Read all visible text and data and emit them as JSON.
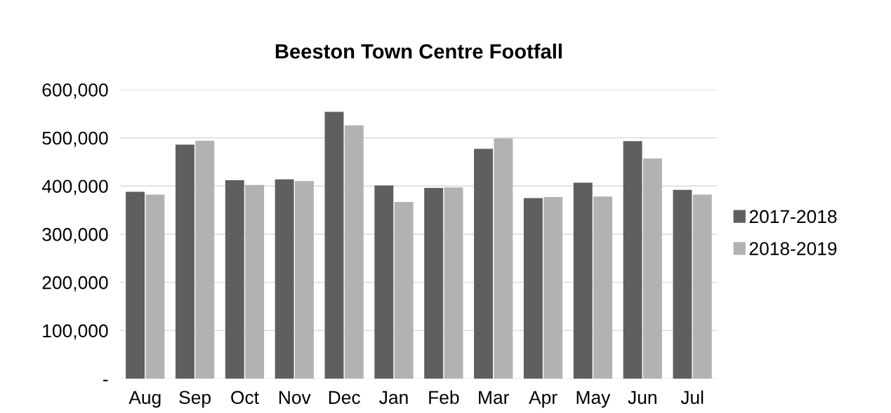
{
  "chart_data": {
    "type": "bar",
    "title": "Beeston Town Centre Footfall",
    "categories": [
      "Aug",
      "Sep",
      "Oct",
      "Nov",
      "Dec",
      "Jan",
      "Feb",
      "Mar",
      "Apr",
      "May",
      "Jun",
      "Jul"
    ],
    "series": [
      {
        "name": "2017-2018",
        "color": "#5f5f5f",
        "values": [
          388000,
          486000,
          412000,
          414000,
          554000,
          401000,
          396000,
          477000,
          375000,
          407000,
          493000,
          392000
        ]
      },
      {
        "name": "2018-2019",
        "color": "#b2b2b2",
        "values": [
          382000,
          494000,
          402000,
          410000,
          526000,
          367000,
          397000,
          499000,
          377000,
          378000,
          457000,
          382000
        ]
      }
    ],
    "ylim": [
      0,
      600000
    ],
    "yticks": [
      {
        "value": 0,
        "label": "-"
      },
      {
        "value": 100000,
        "label": "100,000"
      },
      {
        "value": 200000,
        "label": "200,000"
      },
      {
        "value": 300000,
        "label": "300,000"
      },
      {
        "value": 400000,
        "label": "400,000"
      },
      {
        "value": 500000,
        "label": "500,000"
      },
      {
        "value": 600000,
        "label": "600,000"
      }
    ],
    "grid": "y",
    "legend": "right"
  }
}
